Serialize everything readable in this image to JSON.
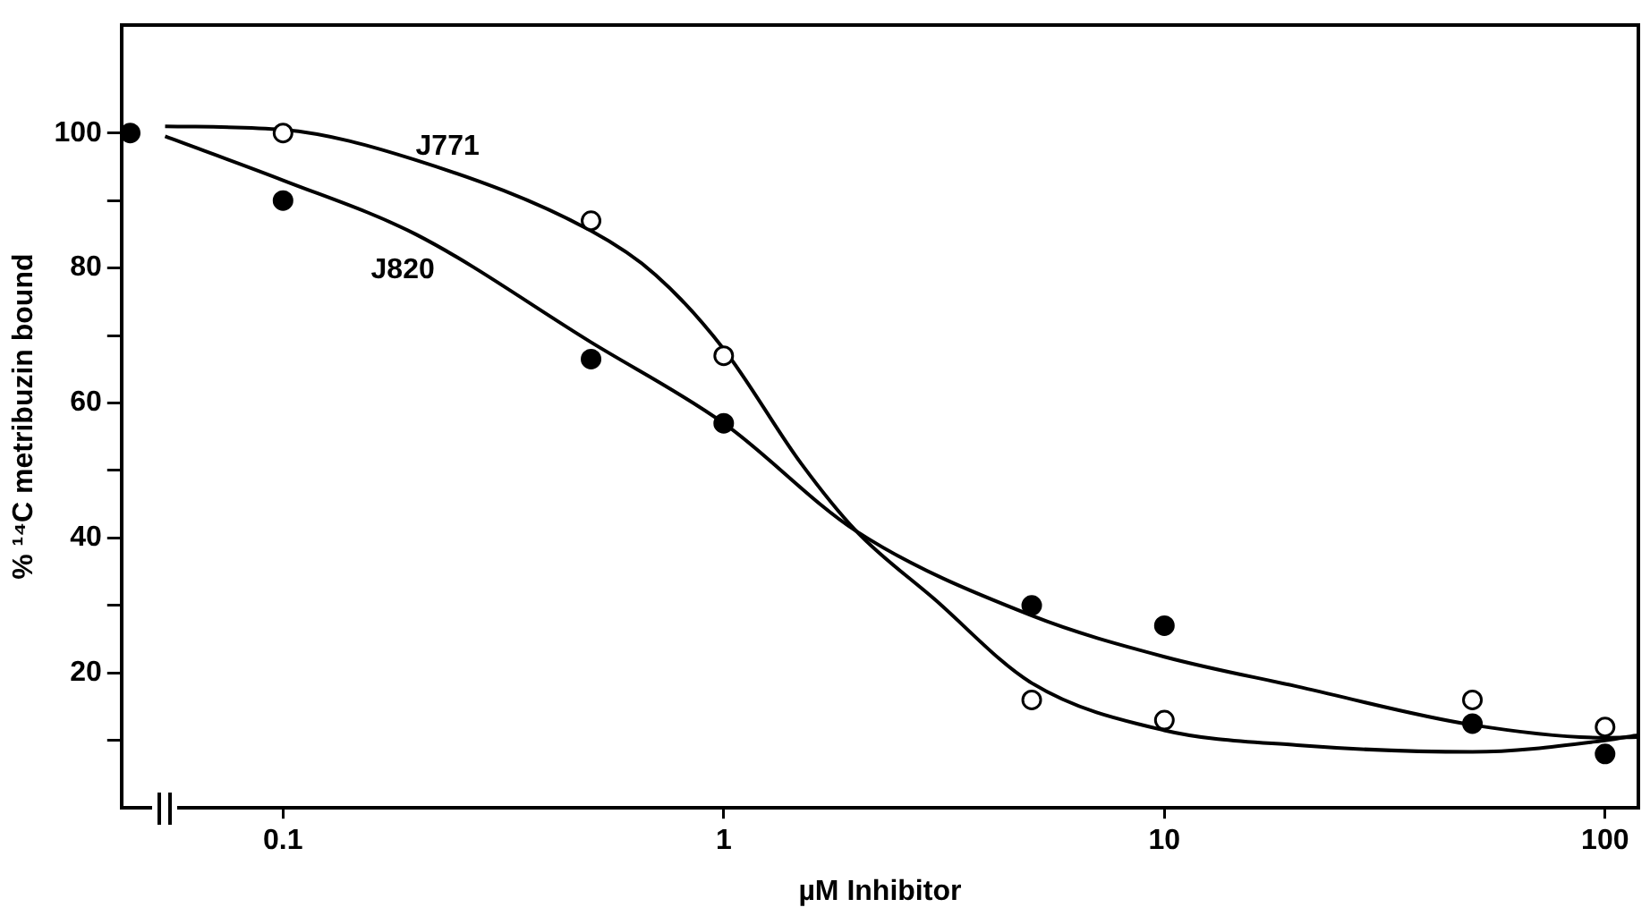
{
  "chart_data": {
    "type": "scatter",
    "xlabel": "µM Inhibitor",
    "ylabel": "% ¹⁴C metribuzin bound",
    "log": "x",
    "xlim": [
      0.043,
      119
    ],
    "xticks": [
      0.1,
      1,
      10,
      100
    ],
    "ylim": [
      0,
      116
    ],
    "yticks": [
      {
        "value": 10,
        "label": null
      },
      20,
      {
        "value": 30,
        "label": null
      },
      40,
      {
        "value": 50,
        "label": null
      },
      60,
      {
        "value": 70,
        "label": null
      },
      80,
      {
        "value": 90,
        "label": null
      },
      100
    ],
    "grid": false,
    "legend": false,
    "series": [
      {
        "type": "scatter",
        "marker": "circle",
        "color": "#ffffff",
        "x": [
          0.1,
          0.5,
          1,
          5,
          10,
          50,
          100
        ],
        "values": [
          100,
          87,
          67,
          16,
          13,
          16,
          12
        ]
      },
      {
        "type": "scatter",
        "marker": "circle",
        "color": "#000000",
        "x": [
          0.045,
          0.1,
          0.5,
          1,
          5,
          10,
          50,
          100
        ],
        "values": [
          100,
          90,
          66.5,
          57,
          30,
          27,
          12.5,
          8
        ]
      },
      {
        "type": "line",
        "marker": "none",
        "name": "J771",
        "color": "#000000",
        "x": [
          0.054,
          0.1,
          0.2,
          0.5,
          0.7,
          1,
          1.5,
          2,
          3,
          5,
          10,
          20,
          50,
          100,
          119
        ],
        "values": [
          101,
          100.5,
          96,
          85.5,
          79,
          68,
          51,
          41,
          31,
          18.5,
          11.5,
          9.3,
          8.3,
          10,
          10.8
        ]
      },
      {
        "type": "line",
        "marker": "none",
        "name": "J820",
        "color": "#000000",
        "x": [
          0.054,
          0.1,
          0.2,
          0.5,
          1,
          2,
          5,
          10,
          20,
          50,
          100,
          119
        ],
        "values": [
          99.5,
          93,
          85,
          69,
          57,
          41,
          28.5,
          22.4,
          18,
          12.3,
          10.4,
          10.5
        ]
      }
    ]
  }
}
